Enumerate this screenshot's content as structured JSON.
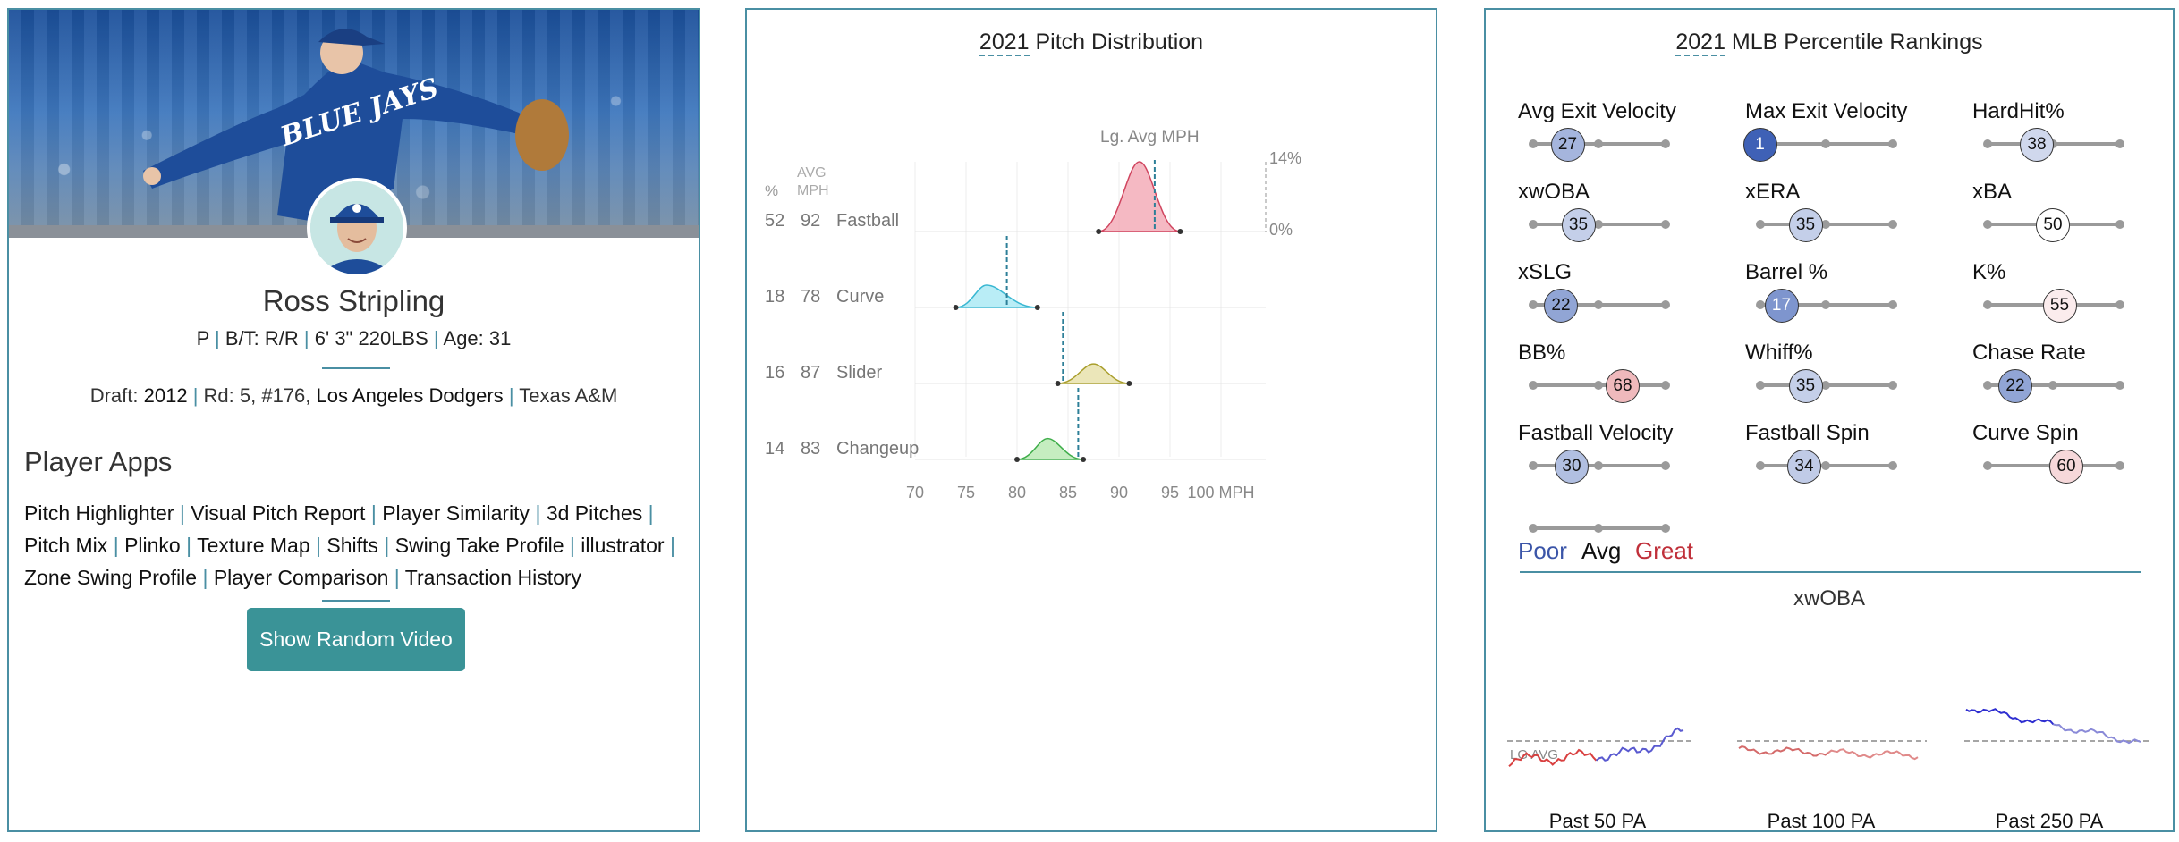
{
  "player": {
    "name": "Ross Stripling",
    "position": "P",
    "bats_throws": "B/T: R/R",
    "height_weight": "6' 3\" 220LBS",
    "age": "Age: 31",
    "draft_label": "Draft:",
    "draft_year": "2012",
    "draft_round": "Rd: 5, #176,",
    "draft_team": "Los Angeles Dodgers",
    "college": "Texas A&M",
    "sep": "|"
  },
  "apps": {
    "title": "Player Apps",
    "items": [
      "Pitch Highlighter",
      "Visual Pitch Report",
      "Player Similarity",
      "3d Pitches",
      "Pitch Mix",
      "Plinko",
      "Texture Map",
      "Shifts",
      "Swing Take Profile",
      "illustrator",
      "Zone Swing Profile",
      "Player Comparison",
      "Transaction History"
    ],
    "button": "Show Random Video"
  },
  "pitch_dist": {
    "title_year": "2021",
    "title_rest": " Pitch Distribution",
    "lg_avg_label": "Lg. Avg MPH",
    "pct_header": "%",
    "avg_header_1": "AVG",
    "avg_header_2": "MPH",
    "scale_top": "14%",
    "scale_bottom": "0%",
    "x_unit": "MPH",
    "pitches": [
      {
        "pct": "52",
        "mph": "92",
        "name": "Fastball",
        "color": "#f2a7b4",
        "stroke": "#d0455f",
        "min": 88,
        "peak": 92,
        "max": 96,
        "lg_avg": 93.5,
        "peak_height": 1.0
      },
      {
        "pct": "18",
        "mph": "78",
        "name": "Curve",
        "color": "#a8e8f4",
        "stroke": "#39b7d2",
        "min": 74,
        "peak": 77,
        "max": 82,
        "lg_avg": 79,
        "peak_height": 0.32
      },
      {
        "pct": "16",
        "mph": "87",
        "name": "Slider",
        "color": "#e6e0a8",
        "stroke": "#a99e2c",
        "min": 84,
        "peak": 87.5,
        "max": 91,
        "lg_avg": 84.5,
        "peak_height": 0.28
      },
      {
        "pct": "14",
        "mph": "83",
        "name": "Changeup",
        "color": "#b6e8b0",
        "stroke": "#3fae4a",
        "min": 80,
        "peak": 83,
        "max": 86.5,
        "lg_avg": 86,
        "peak_height": 0.3
      }
    ],
    "x_ticks": [
      "70",
      "75",
      "80",
      "85",
      "90",
      "95",
      "100"
    ],
    "x_min": 70,
    "x_max": 100
  },
  "percentiles": {
    "title_year": "2021",
    "title_rest": " MLB Percentile Rankings",
    "poor_color": "#3b55a8",
    "great_color": "#c0303a",
    "metrics": [
      {
        "label": "Avg Exit Velocity",
        "value": 27
      },
      {
        "label": "Max Exit Velocity",
        "value": 1
      },
      {
        "label": "HardHit%",
        "value": 38
      },
      {
        "label": "xwOBA",
        "value": 35
      },
      {
        "label": "xERA",
        "value": 35
      },
      {
        "label": "xBA",
        "value": 50
      },
      {
        "label": "xSLG",
        "value": 22
      },
      {
        "label": "Barrel %",
        "value": 17
      },
      {
        "label": "K%",
        "value": 55
      },
      {
        "label": "BB%",
        "value": 68
      },
      {
        "label": "Whiff%",
        "value": 35
      },
      {
        "label": "Chase Rate",
        "value": 22
      },
      {
        "label": "Fastball Velocity",
        "value": 30
      },
      {
        "label": "Fastball Spin",
        "value": 34
      },
      {
        "label": "Curve Spin",
        "value": 60
      }
    ],
    "legend": {
      "poor": "Poor",
      "avg": "Avg",
      "great": "Great"
    },
    "xwoba_title": "xwOBA",
    "lg_avg_label": "LG AVG",
    "sparks": [
      {
        "label": "Past 50 PA"
      },
      {
        "label": "Past 100 PA"
      },
      {
        "label": "Past 250 PA"
      }
    ]
  }
}
